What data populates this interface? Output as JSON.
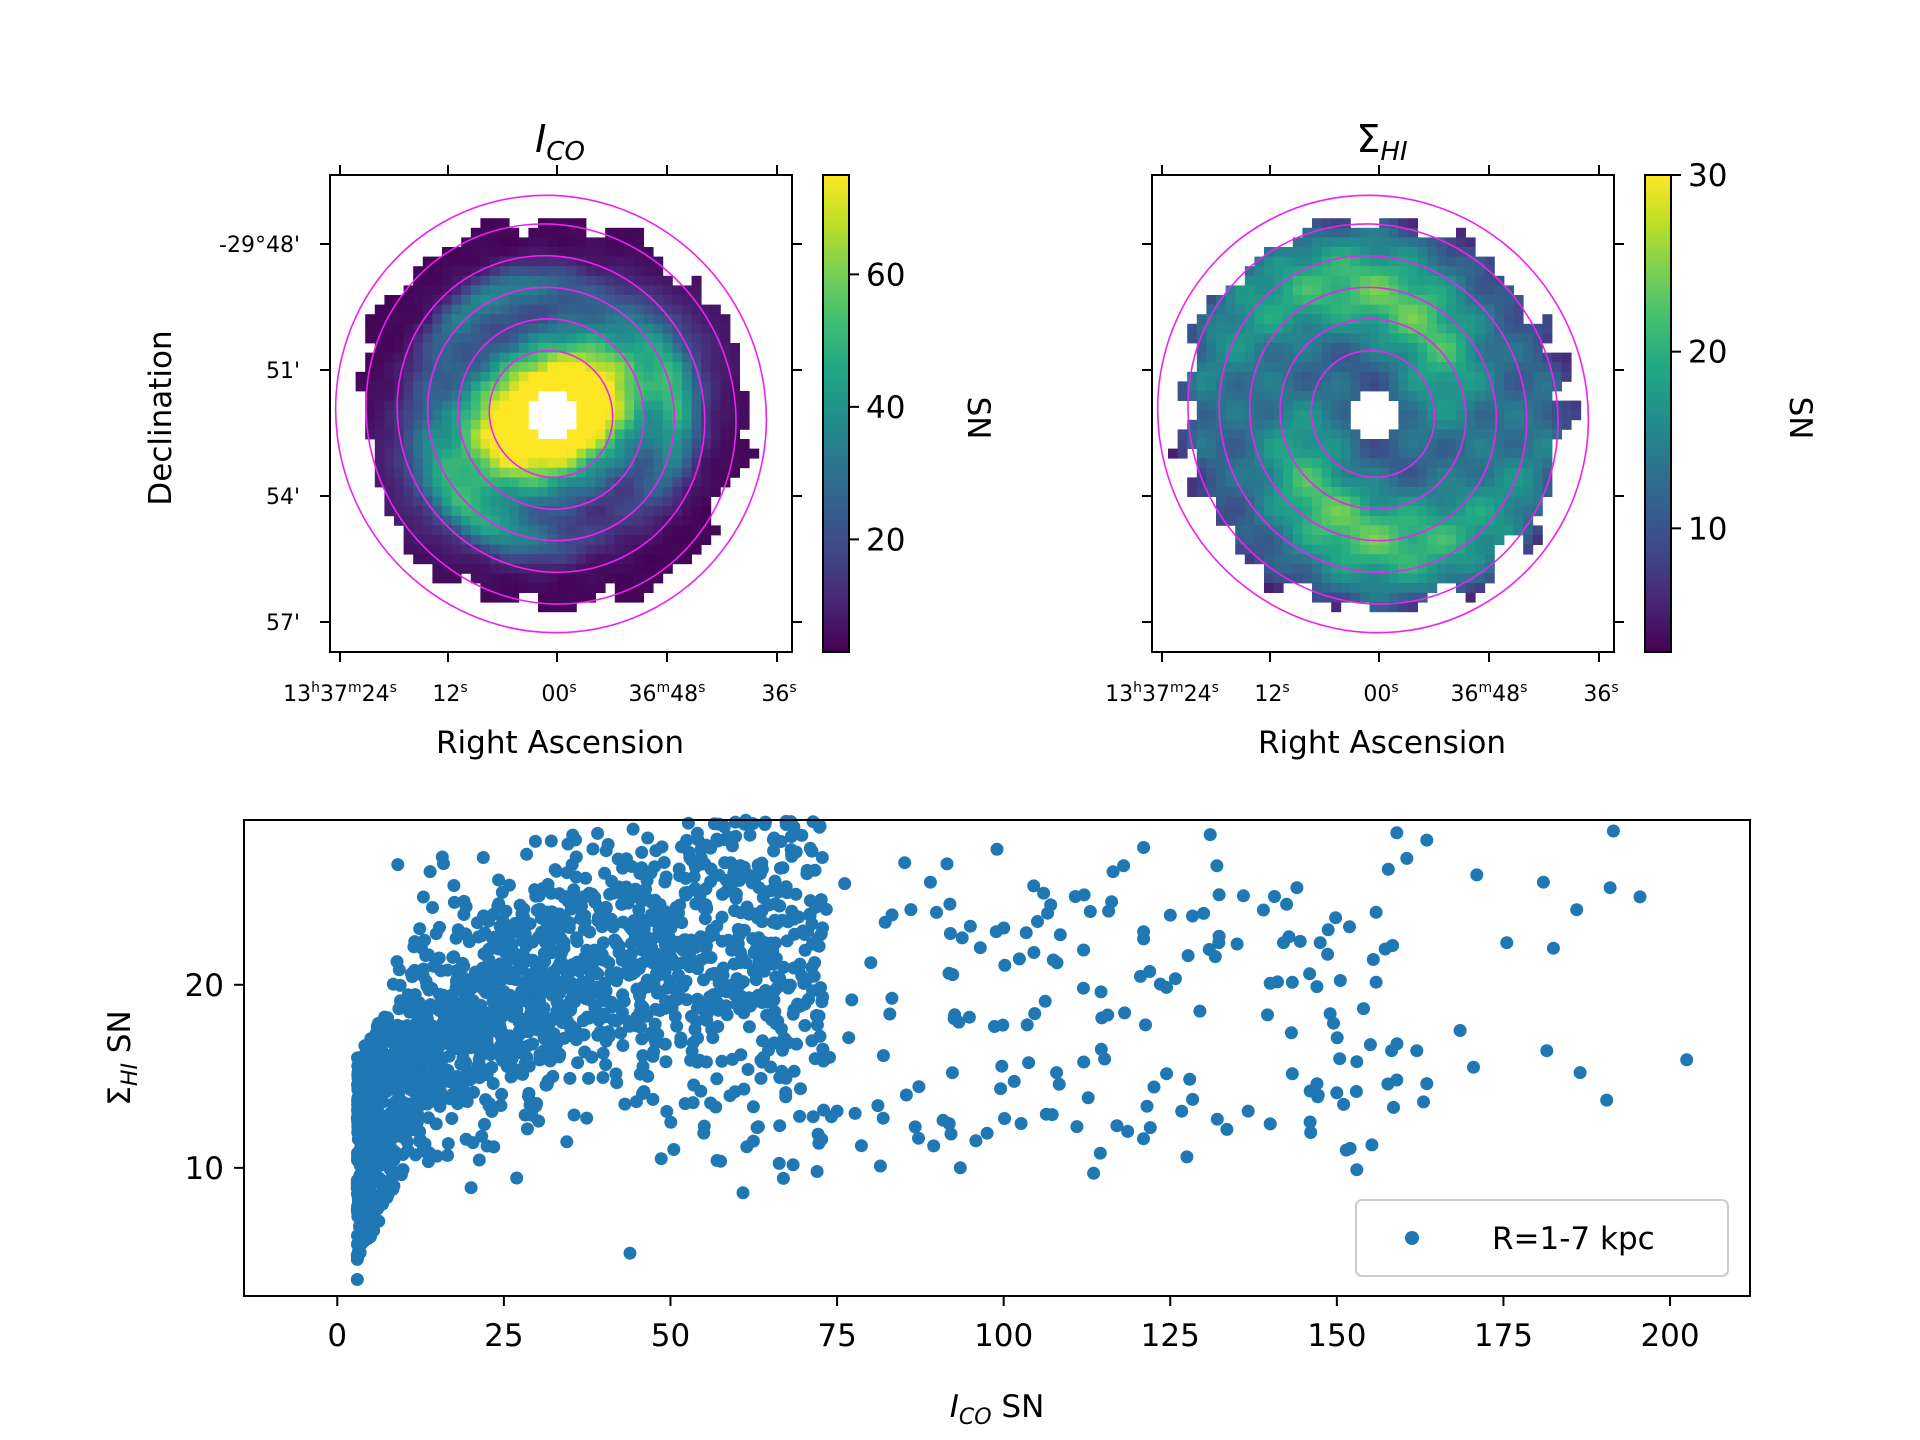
{
  "panels": {
    "co_map": {
      "title_main": "I",
      "title_sub": "CO",
      "xlabel": "Right Ascension",
      "ylabel": "Declination",
      "xticks": [
        {
          "h": "13",
          "hs": "h",
          "m": "37",
          "ms": "m",
          "s": "24",
          "ss": "s"
        },
        {
          "s": "12",
          "ss": "s"
        },
        {
          "s": "00",
          "ss": "s"
        },
        {
          "m": "36",
          "ms": "m",
          "s": "48",
          "ss": "s"
        },
        {
          "s": "36",
          "ss": "s"
        }
      ],
      "yticks": [
        "-29°48'",
        "51'",
        "54'",
        "57'"
      ],
      "colorbar": {
        "label": "SN",
        "ticks": [
          "20",
          "40",
          "60"
        ],
        "range": [
          3,
          75
        ],
        "tick_values": [
          20,
          40,
          60
        ]
      },
      "map_peak": 75
    },
    "hi_map": {
      "title_main": "Σ",
      "title_sub": "HI",
      "xlabel": "Right Ascension",
      "xticks": [
        {
          "h": "13",
          "hs": "h",
          "m": "37",
          "ms": "m",
          "s": "24",
          "ss": "s"
        },
        {
          "s": "12",
          "ss": "s"
        },
        {
          "s": "00",
          "ss": "s"
        },
        {
          "m": "36",
          "ms": "m",
          "s": "48",
          "ss": "s"
        },
        {
          "s": "36",
          "ss": "s"
        }
      ],
      "colorbar": {
        "label": "SN",
        "ticks": [
          "10",
          "20",
          "30"
        ],
        "range": [
          3,
          30
        ],
        "tick_values": [
          10,
          20,
          30
        ]
      },
      "map_peak": 30
    }
  },
  "colors": {
    "marker": "#1f77b4",
    "rings": "#ee22ee"
  },
  "chart_data": [
    {
      "type": "heatmap",
      "title": "I_CO",
      "xlabel": "Right Ascension",
      "ylabel": "Declination",
      "colorbar_label": "SN",
      "colorbar_range": [
        3,
        75
      ],
      "colormap": "viridis"
    },
    {
      "type": "heatmap",
      "title": "Σ_HI",
      "xlabel": "Right Ascension",
      "colorbar_label": "SN",
      "colorbar_range": [
        3,
        30
      ],
      "colormap": "viridis"
    },
    {
      "type": "scatter",
      "xlabel_main": "I",
      "xlabel_sub": "CO",
      "xlabel_tail": " SN",
      "ylabel_main": "Σ",
      "ylabel_sub": "HI",
      "ylabel_tail": " SN",
      "xlim": [
        -14,
        212
      ],
      "ylim": [
        3,
        29
      ],
      "xticks": [
        0,
        25,
        50,
        75,
        100,
        125,
        150,
        175,
        200
      ],
      "yticks": [
        10,
        20
      ],
      "legend": {
        "label": "R=1-7 kpc",
        "placement": "lower right"
      },
      "series": [
        {
          "name": "R=1-7 kpc",
          "highlighted_points": [
            [
              3,
              3.9
            ],
            [
              3,
              5
            ],
            [
              4,
              6
            ],
            [
              5,
              7
            ],
            [
              159,
              28.3
            ],
            [
              191.5,
              28.4
            ],
            [
              131,
              28.2
            ],
            [
              163.5,
              27.9
            ],
            [
              160.5,
              26.9
            ],
            [
              99,
              27.4
            ],
            [
              121,
              27.5
            ],
            [
              153,
              9.9
            ],
            [
              202.5,
              15.9
            ],
            [
              190.5,
              13.7
            ],
            [
              195.5,
              24.8
            ],
            [
              191,
              25.3
            ],
            [
              181,
              25.6
            ],
            [
              186,
              24.1
            ],
            [
              171,
              26.0
            ],
            [
              182.5,
              22.0
            ],
            [
              175.5,
              22.3
            ],
            [
              168.5,
              17.5
            ],
            [
              181.5,
              16.4
            ],
            [
              186.5,
              15.2
            ],
            [
              170.5,
              15.5
            ],
            [
              158.5,
              13.3
            ],
            [
              163,
              13.6
            ],
            [
              163.5,
              14.6
            ],
            [
              162,
              16.4
            ],
            [
              159,
              14.8
            ],
            [
              113.5,
              9.7
            ],
            [
              93.5,
              10.0
            ],
            [
              81.5,
              10.1
            ],
            [
              72,
              9.8
            ],
            [
              127.5,
              10.6
            ],
            [
              114.5,
              10.8
            ],
            [
              57,
              10.4
            ],
            [
              50.5,
              11.0
            ],
            [
              55,
              11.9
            ],
            [
              63,
              12.2
            ],
            [
              75,
              13.1
            ],
            [
              89.5,
              11.2
            ],
            [
              140,
              12.4
            ],
            [
              133.5,
              12.1
            ],
            [
              122,
              12.2
            ],
            [
              117,
              12.3
            ],
            [
              146,
              14.2
            ],
            [
              150,
              14.1
            ],
            [
              153,
              15.8
            ],
            [
              147,
              19.9
            ],
            [
              149.5,
              17.9
            ],
            [
              154,
              18.7
            ],
            [
              147.5,
              22.3
            ],
            [
              142,
              22.3
            ],
            [
              144,
              25.3
            ],
            [
              132,
              26.5
            ],
            [
              118,
              26.5
            ],
            [
              104.5,
              25.4
            ],
            [
              106,
              25.0
            ],
            [
              100,
              23.1
            ],
            [
              91.5,
              26.6
            ],
            [
              89,
              25.6
            ],
            [
              95,
              23.2
            ],
            [
              92,
              22.8
            ],
            [
              108,
              21.2
            ],
            [
              130,
              23.9
            ],
            [
              125,
              23.8
            ],
            [
              121,
              22.9
            ],
            [
              113,
              24.0
            ],
            [
              112,
              21.9
            ]
          ],
          "cluster_envelope": {
            "x_range": [
              3,
              72
            ],
            "y_range": [
              5,
              27.5
            ],
            "dense_core_x": [
              3,
              45
            ],
            "dense_core_y": [
              10,
              24
            ]
          },
          "mid_scatter": {
            "x_range": [
              72,
              160
            ],
            "y_range": [
              10,
              26
            ]
          },
          "point_count_approx": 2100
        }
      ]
    }
  ]
}
